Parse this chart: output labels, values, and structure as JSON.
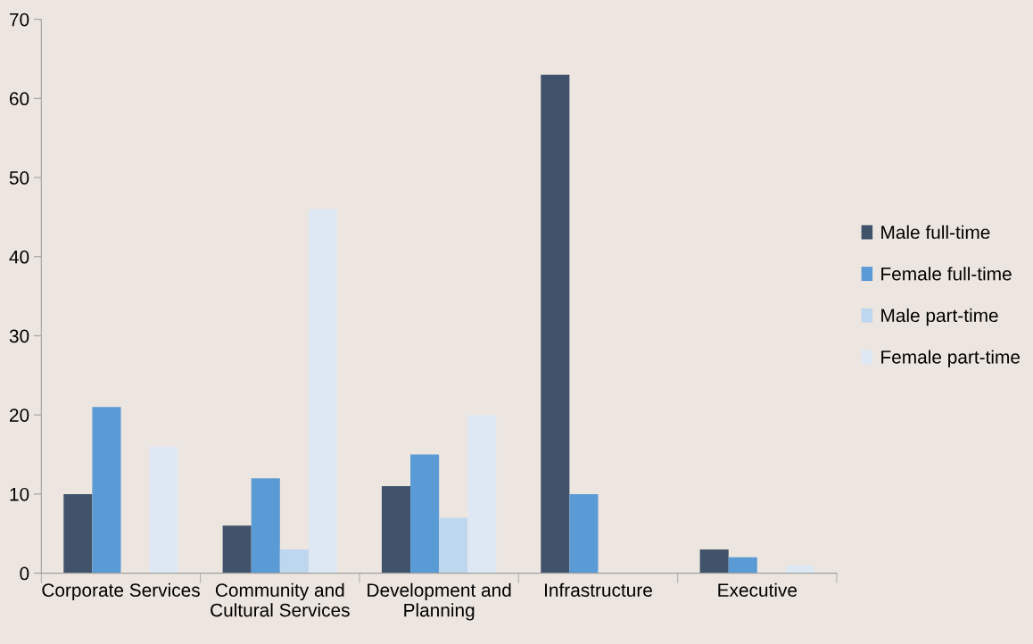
{
  "chart_data": {
    "type": "bar",
    "categories": [
      "Corporate Services",
      "Community and\nCultural Services",
      "Development and\nPlanning",
      "Infrastructure",
      "Executive"
    ],
    "series": [
      {
        "name": "Male full-time",
        "color": "#41536b",
        "values": [
          10,
          6,
          11,
          63,
          3
        ]
      },
      {
        "name": "Female full-time",
        "color": "#5b9bd5",
        "values": [
          21,
          12,
          15,
          10,
          2
        ]
      },
      {
        "name": "Male part-time",
        "color": "#bdd7ee",
        "values": [
          0,
          3,
          7,
          0,
          0
        ]
      },
      {
        "name": "Female part-time",
        "color": "#dee8f4",
        "values": [
          16,
          46,
          20,
          0,
          1
        ]
      }
    ],
    "ylim": [
      0,
      70
    ],
    "yticks": [
      0,
      10,
      20,
      30,
      40,
      50,
      60,
      70
    ],
    "grid": false,
    "legend": "right"
  }
}
